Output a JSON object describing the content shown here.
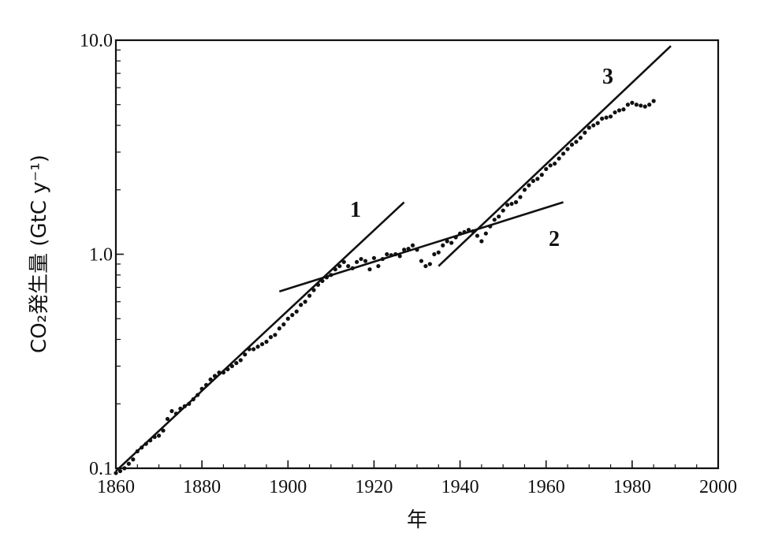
{
  "chart_data": {
    "type": "scatter",
    "xlabel": "年",
    "ylabel": "CO₂発生量 (GtC y⁻¹)",
    "xlim": [
      1860,
      2000
    ],
    "ylim": [
      0.1,
      10.0
    ],
    "y_scale": "log",
    "x_ticks": [
      1860,
      1880,
      1900,
      1920,
      1940,
      1960,
      1980,
      2000
    ],
    "x_tick_labels": [
      "1860",
      "1880",
      "1900",
      "1920",
      "1940",
      "1960",
      "1980",
      "2000"
    ],
    "y_ticks": [
      0.1,
      1.0,
      10.0
    ],
    "y_tick_labels": [
      "0.1",
      "1.0",
      "10.0"
    ],
    "grid": false,
    "series": [
      {
        "marker": "dot",
        "color": "#111111",
        "x": [
          1860,
          1861,
          1862,
          1863,
          1864,
          1865,
          1866,
          1867,
          1868,
          1869,
          1870,
          1871,
          1872,
          1873,
          1874,
          1875,
          1876,
          1877,
          1878,
          1879,
          1880,
          1881,
          1882,
          1883,
          1884,
          1885,
          1886,
          1887,
          1888,
          1889,
          1890,
          1891,
          1892,
          1893,
          1894,
          1895,
          1896,
          1897,
          1898,
          1899,
          1900,
          1901,
          1902,
          1903,
          1904,
          1905,
          1906,
          1907,
          1908,
          1909,
          1910,
          1911,
          1912,
          1913,
          1914,
          1915,
          1916,
          1917,
          1918,
          1919,
          1920,
          1921,
          1922,
          1923,
          1924,
          1925,
          1926,
          1927,
          1928,
          1929,
          1930,
          1931,
          1932,
          1933,
          1934,
          1935,
          1936,
          1937,
          1938,
          1939,
          1940,
          1941,
          1942,
          1943,
          1944,
          1945,
          1946,
          1947,
          1948,
          1949,
          1950,
          1951,
          1952,
          1953,
          1954,
          1955,
          1956,
          1957,
          1958,
          1959,
          1960,
          1961,
          1962,
          1963,
          1964,
          1965,
          1966,
          1967,
          1968,
          1969,
          1970,
          1971,
          1972,
          1973,
          1974,
          1975,
          1976,
          1977,
          1978,
          1979,
          1980,
          1981,
          1982,
          1983,
          1984,
          1985
        ],
        "values": [
          0.095,
          0.097,
          0.1,
          0.105,
          0.11,
          0.12,
          0.125,
          0.13,
          0.135,
          0.14,
          0.142,
          0.15,
          0.17,
          0.185,
          0.18,
          0.19,
          0.195,
          0.2,
          0.21,
          0.22,
          0.235,
          0.245,
          0.26,
          0.27,
          0.28,
          0.28,
          0.29,
          0.3,
          0.31,
          0.32,
          0.34,
          0.36,
          0.36,
          0.37,
          0.38,
          0.39,
          0.41,
          0.42,
          0.45,
          0.47,
          0.5,
          0.52,
          0.54,
          0.58,
          0.6,
          0.64,
          0.68,
          0.72,
          0.75,
          0.78,
          0.8,
          0.85,
          0.88,
          0.92,
          0.88,
          0.86,
          0.92,
          0.95,
          0.93,
          0.85,
          0.96,
          0.88,
          0.95,
          1.0,
          0.99,
          1.0,
          0.98,
          1.05,
          1.06,
          1.1,
          1.05,
          0.93,
          0.88,
          0.9,
          1.0,
          1.02,
          1.1,
          1.15,
          1.13,
          1.2,
          1.25,
          1.27,
          1.3,
          1.28,
          1.22,
          1.15,
          1.25,
          1.35,
          1.45,
          1.5,
          1.6,
          1.7,
          1.72,
          1.75,
          1.85,
          2.0,
          2.1,
          2.2,
          2.25,
          2.35,
          2.5,
          2.6,
          2.65,
          2.8,
          2.95,
          3.1,
          3.25,
          3.35,
          3.5,
          3.7,
          3.9,
          4.0,
          4.1,
          4.3,
          4.35,
          4.4,
          4.6,
          4.7,
          4.75,
          5.0,
          5.1,
          5.0,
          4.95,
          4.9,
          5.0,
          5.2
        ]
      }
    ],
    "fit_lines": [
      {
        "label": "1",
        "x": [
          1860,
          1927
        ],
        "y": [
          0.097,
          1.75
        ]
      },
      {
        "label": "2",
        "x": [
          1898,
          1964
        ],
        "y": [
          0.67,
          1.75
        ]
      },
      {
        "label": "3",
        "x": [
          1935,
          1989
        ],
        "y": [
          0.88,
          9.4
        ]
      }
    ]
  }
}
